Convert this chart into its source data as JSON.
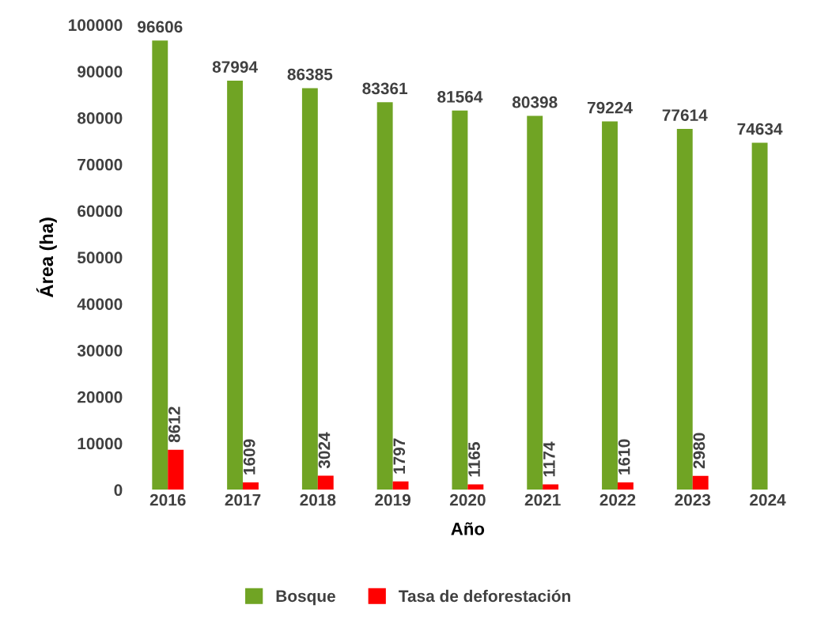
{
  "chart_data": {
    "type": "bar",
    "xlabel": "Año",
    "ylabel": "Área (ha)",
    "categories": [
      "2016",
      "2017",
      "2018",
      "2019",
      "2020",
      "2021",
      "2022",
      "2023",
      "2024"
    ],
    "series": [
      {
        "name": "Bosque",
        "color": "#70a424",
        "values": [
          96606,
          87994,
          86385,
          83361,
          81564,
          80398,
          79224,
          77614,
          74634
        ]
      },
      {
        "name": "Tasa de deforestación",
        "color": "#ff0000",
        "values": [
          8612,
          1609,
          3024,
          1797,
          1165,
          1174,
          1610,
          2980,
          null
        ]
      }
    ],
    "ylim": [
      0,
      100000
    ],
    "yticks": [
      0,
      10000,
      20000,
      30000,
      40000,
      50000,
      60000,
      70000,
      80000,
      90000,
      100000
    ],
    "data_labels": true,
    "grid": false,
    "legend": "bottom"
  }
}
